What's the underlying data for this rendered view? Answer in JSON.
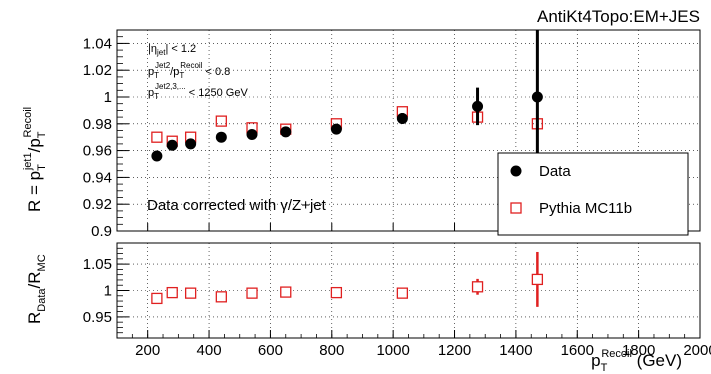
{
  "corner_label": "AntiKt4Topo:EM+JES",
  "colors": {
    "data": "#000000",
    "mc": "#e02020",
    "ratio": "#e02020",
    "grid": "#000000"
  },
  "chart_data": [
    {
      "type": "scatter",
      "title": "AntiKt4Topo:EM+JES",
      "ylabel": "R = p_T^{jet1}/p_T^{Recoil}",
      "ylabel_parts": {
        "main": "R = p",
        "sub1": "T",
        "sup1": "jet1",
        "slash": "/p",
        "sub2": "T",
        "sup2": "Recoil"
      },
      "xlim": [
        100,
        2000
      ],
      "ylim": [
        0.9,
        1.05
      ],
      "yticks": [
        0.9,
        0.92,
        0.94,
        0.96,
        0.98,
        1.0,
        1.02,
        1.04
      ],
      "ytick_labels": [
        "0.9",
        "0.92",
        "0.94",
        "0.96",
        "0.98",
        "1",
        "1.02",
        "1.04"
      ],
      "grid": true,
      "legend_position": "bottom-right",
      "cuts": [
        {
          "main": "|η",
          "sub": "jet",
          "rest": "| < 1.2"
        },
        {
          "main": "p",
          "sub": "T",
          "sup": "Jet2",
          "mid": "/p",
          "sub2": "T",
          "sup2": "Recoil",
          "rest": " < 0.8"
        },
        {
          "main": "p",
          "sub": "T",
          "sup": "Jet2,3,...",
          "rest": " < 1250 GeV"
        }
      ],
      "annotation": "Data corrected with γ/Z+jet",
      "series": [
        {
          "name": "Data",
          "marker": "filled-circle",
          "x": [
            230,
            280,
            340,
            440,
            540,
            650,
            815,
            1030,
            1275,
            1470
          ],
          "y": [
            0.956,
            0.964,
            0.965,
            0.97,
            0.972,
            0.974,
            0.976,
            0.984,
            0.993,
            1.0
          ],
          "yerr": [
            0.0015,
            0.0015,
            0.0015,
            0.0015,
            0.0015,
            0.0015,
            0.0018,
            0.004,
            0.014,
            0.055
          ]
        },
        {
          "name": "Pythia MC11b",
          "marker": "open-square",
          "x": [
            230,
            280,
            340,
            440,
            540,
            650,
            815,
            1030,
            1275,
            1470
          ],
          "y": [
            0.97,
            0.967,
            0.97,
            0.982,
            0.977,
            0.976,
            0.98,
            0.989,
            0.985,
            0.98
          ],
          "yerr": [
            0,
            0,
            0,
            0,
            0,
            0,
            0,
            0,
            0,
            0
          ]
        }
      ]
    },
    {
      "type": "scatter",
      "xlabel": "p_T^{Recoil} (GeV)",
      "xlabel_parts": {
        "main": "p",
        "sub": "T",
        "sup": "Recoil",
        "rest": " (GeV)"
      },
      "ylabel": "R_Data/R_MC",
      "ylabel_parts": {
        "main": "R",
        "sub1": "Data",
        "slash": "/R",
        "sub2": "MC"
      },
      "xlim": [
        100,
        2000
      ],
      "ylim": [
        0.91,
        1.09
      ],
      "xticks": [
        200,
        400,
        600,
        800,
        1000,
        1200,
        1400,
        1600,
        1800,
        2000
      ],
      "xtick_labels": [
        "200",
        "400",
        "600",
        "800",
        "1000",
        "1200",
        "1400",
        "1600",
        "1800",
        "2000"
      ],
      "yticks": [
        0.95,
        1.0,
        1.05
      ],
      "ytick_labels": [
        "0.95",
        "1",
        "1.05"
      ],
      "grid": true,
      "series": [
        {
          "marker": "open-square",
          "x": [
            230,
            280,
            340,
            440,
            540,
            650,
            815,
            1030,
            1275,
            1470
          ],
          "y": [
            0.985,
            0.996,
            0.995,
            0.988,
            0.995,
            0.997,
            0.996,
            0.995,
            1.007,
            1.021
          ],
          "yerr": [
            0.002,
            0.002,
            0.002,
            0.002,
            0.002,
            0.002,
            0.002,
            0.004,
            0.015,
            0.052
          ]
        }
      ]
    }
  ]
}
